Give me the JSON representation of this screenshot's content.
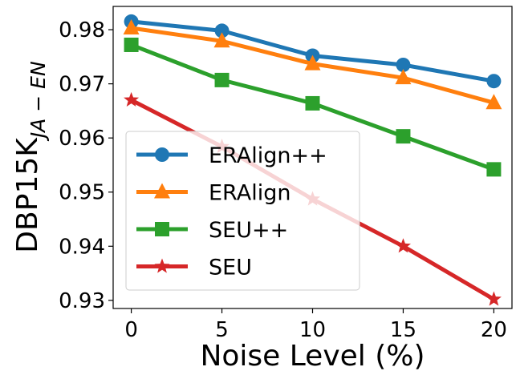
{
  "chart_data": {
    "type": "line",
    "xlabel": "Noise Level (%)",
    "ylabel": {
      "main": "DBP15K",
      "subscript": "JA − EN"
    },
    "x": [
      0,
      5,
      10,
      15,
      20
    ],
    "xticks": [
      0,
      5,
      10,
      15,
      20
    ],
    "yticks": [
      0.93,
      0.94,
      0.95,
      0.96,
      0.97,
      0.98
    ],
    "ytick_labels": [
      "0.93",
      "0.94",
      "0.95",
      "0.96",
      "0.97",
      "0.98"
    ],
    "xlim": [
      -1,
      21
    ],
    "ylim": [
      0.9285,
      0.9843
    ],
    "legend_position": "lower-left",
    "series": [
      {
        "name": "ERAlign++",
        "color": "#1f77b4",
        "marker": "circle",
        "values": [
          0.9815,
          0.9798,
          0.9752,
          0.9735,
          0.9705
        ]
      },
      {
        "name": "ERAlign",
        "color": "#ff7f0e",
        "marker": "triangle",
        "values": [
          0.9803,
          0.9779,
          0.9737,
          0.9711,
          0.9665
        ]
      },
      {
        "name": "SEU++",
        "color": "#2ca02c",
        "marker": "square",
        "values": [
          0.9772,
          0.9707,
          0.9664,
          0.9603,
          0.9542
        ]
      },
      {
        "name": "SEU",
        "color": "#d62728",
        "marker": "star",
        "values": [
          0.967,
          0.9584,
          0.9487,
          0.94,
          0.9302
        ]
      }
    ]
  }
}
